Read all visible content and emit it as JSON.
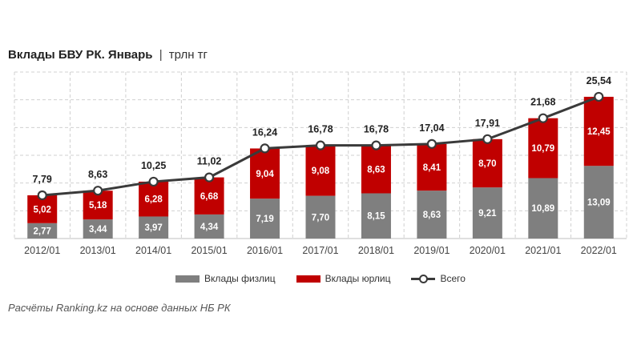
{
  "header": {
    "title": "Вклады БВУ РК. Январь",
    "separator": "|",
    "unit": "трлн тг"
  },
  "chart_data": {
    "type": "bar",
    "stacked": true,
    "categories": [
      "2012/01",
      "2013/01",
      "2014/01",
      "2015/01",
      "2016/01",
      "2017/01",
      "2018/01",
      "2019/01",
      "2020/01",
      "2021/01",
      "2022/01"
    ],
    "series": [
      {
        "name": "Вклады физлиц",
        "color": "#7f7f7f",
        "values": [
          2.77,
          3.44,
          3.97,
          4.34,
          7.19,
          7.7,
          8.15,
          8.63,
          9.21,
          10.89,
          13.09
        ],
        "labels": [
          "2,77",
          "3,44",
          "3,97",
          "4,34",
          "7,19",
          "7,70",
          "8,15",
          "8,63",
          "9,21",
          "10,89",
          "13,09"
        ]
      },
      {
        "name": "Вклады юрлиц",
        "color": "#c00000",
        "values": [
          5.02,
          5.18,
          6.28,
          6.68,
          9.04,
          9.08,
          8.63,
          8.41,
          8.7,
          10.79,
          12.45
        ],
        "labels": [
          "5,02",
          "5,18",
          "6,28",
          "6,68",
          "9,04",
          "9,08",
          "8,63",
          "8,41",
          "8,70",
          "10,79",
          "12,45"
        ]
      },
      {
        "name": "Всего",
        "type": "line",
        "color": "#3a3a3a",
        "values": [
          7.79,
          8.63,
          10.25,
          11.02,
          16.24,
          16.78,
          16.78,
          17.04,
          17.91,
          21.68,
          25.54
        ],
        "labels": [
          "7,79",
          "8,63",
          "10,25",
          "11,02",
          "16,24",
          "16,78",
          "16,78",
          "17,04",
          "17,91",
          "21,68",
          "25,54"
        ]
      }
    ],
    "ylim": [
      0,
      30
    ],
    "grid": true,
    "legend": "bottom"
  },
  "legend": {
    "physical": "Вклады физлиц",
    "legal": "Вклады юрлиц",
    "total": "Всего"
  },
  "footnote": "Расчёты Ranking.kz на основе данных НБ РК"
}
